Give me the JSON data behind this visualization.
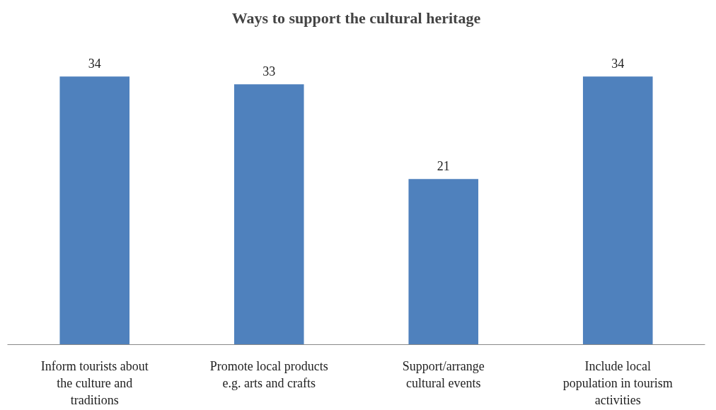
{
  "chart_data": {
    "type": "bar",
    "title": "Ways to support the cultural heritage",
    "categories": [
      "Inform tourists about the culture and traditions",
      "Promote local products e.g. arts and crafts",
      "Support/arrange cultural events",
      "Include local population in tourism activities"
    ],
    "values": [
      34,
      33,
      21,
      34
    ],
    "color": "#4f81bd",
    "data_labels": true,
    "tick_labels": "x"
  }
}
